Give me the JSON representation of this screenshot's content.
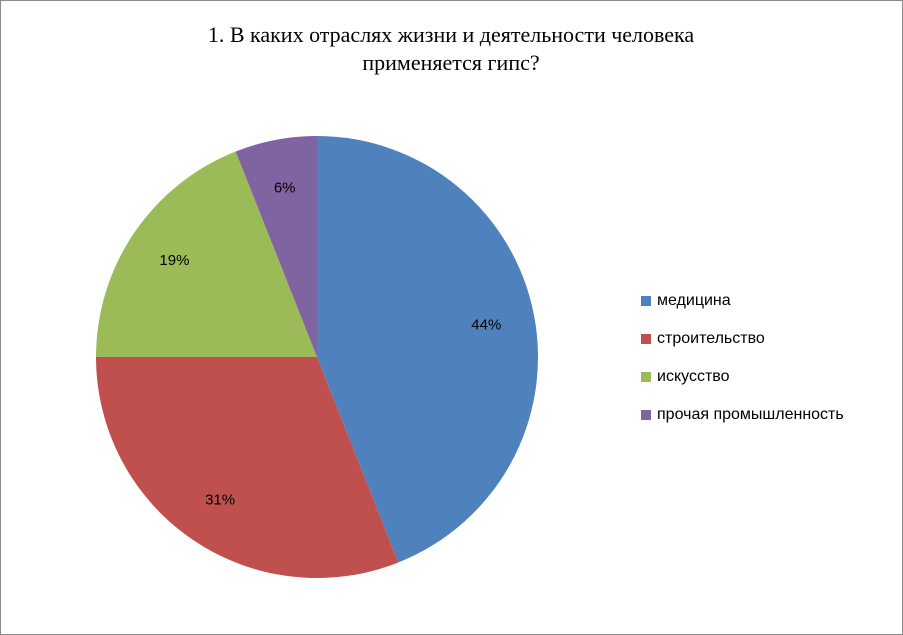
{
  "chart_data": {
    "type": "pie",
    "title": "1. В каких отраслях жизни и деятельности человека применяется гипс?",
    "categories": [
      "медицина",
      "строительство",
      "искусство",
      "прочая промышленность"
    ],
    "values": [
      44,
      31,
      19,
      6
    ],
    "data_labels": [
      "44%",
      "31%",
      "19%",
      "6%"
    ],
    "colors": [
      "#4f81bd",
      "#c0504d",
      "#9bbb59",
      "#8064a2"
    ],
    "legend_position": "right"
  }
}
